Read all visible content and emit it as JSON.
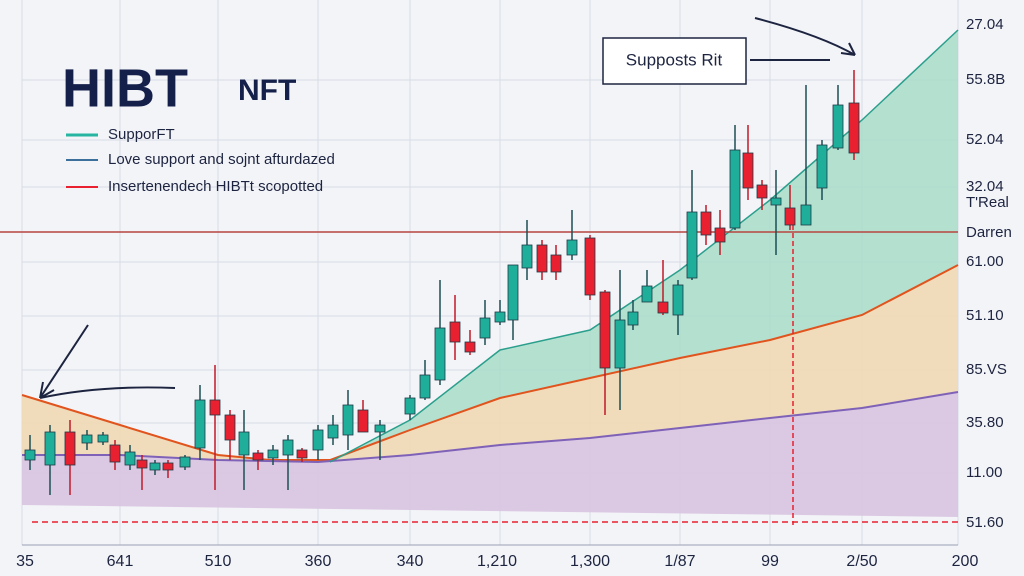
{
  "chart_data": {
    "type": "candlestick",
    "title": "HIBT",
    "subtitle": "NFT",
    "legend": [
      "SupporFT",
      "Love support and sojnt afturdazed",
      "Insertenendech HIBTt scopotted"
    ],
    "annotation": "Supposts Rit",
    "y_labels": [
      "27.04",
      "55.8B",
      "52.04",
      "32.04",
      "T'Real",
      "Darren",
      "61.00",
      "51.10",
      "85.VS",
      "35.80",
      "11.00",
      "51.60"
    ],
    "x_labels": [
      "35",
      "641",
      "510",
      "360",
      "340",
      "1,210",
      "1,300",
      "1/87",
      "99",
      "2/50",
      "200"
    ]
  }
}
